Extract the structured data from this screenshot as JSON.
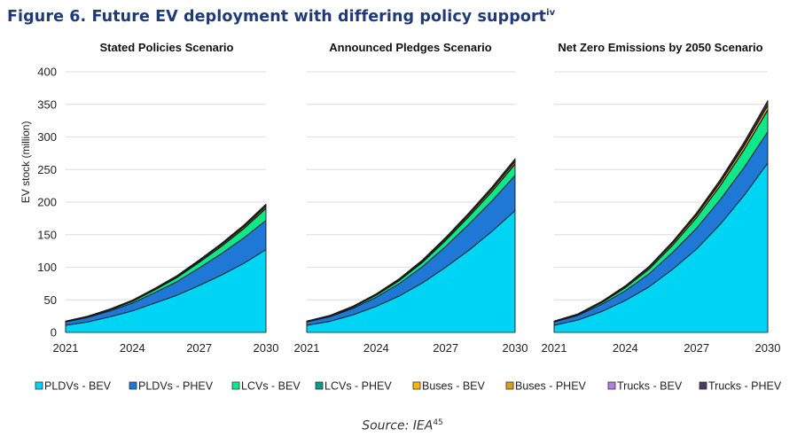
{
  "figure": {
    "title": "Figure 6. Future EV deployment with differing policy support",
    "title_superscript": "iv",
    "source": "Source: IEA",
    "source_superscript": "45"
  },
  "chart_data": {
    "type": "area",
    "stacked": true,
    "ylabel": "EV stock (million)",
    "ylim": [
      0,
      400
    ],
    "yticks": [
      0,
      50,
      100,
      150,
      200,
      250,
      300,
      350,
      400
    ],
    "x": [
      2021,
      2022,
      2023,
      2024,
      2025,
      2026,
      2027,
      2028,
      2029,
      2030
    ],
    "xticks": [
      2021,
      2024,
      2027,
      2030
    ],
    "grid": "horizontal",
    "legend_position": "bottom",
    "legend": [
      {
        "name": "PLDVs - BEV",
        "color": "#00d4f5"
      },
      {
        "name": "PLDVs - PHEV",
        "color": "#1f78d6"
      },
      {
        "name": "LCVs - BEV",
        "color": "#0ee88a"
      },
      {
        "name": "LCVs - PHEV",
        "color": "#0e9a8a"
      },
      {
        "name": "Buses - BEV",
        "color": "#f5b800"
      },
      {
        "name": "Buses - PHEV",
        "color": "#d9a020"
      },
      {
        "name": "Trucks - BEV",
        "color": "#b27ee0"
      },
      {
        "name": "Trucks - PHEV",
        "color": "#4a3a6a"
      }
    ],
    "panels": [
      {
        "title": "Stated Policies Scenario",
        "series": [
          {
            "name": "PLDVs - BEV",
            "values": [
              11,
              16,
              24,
              33,
              45,
              57,
              72,
              88,
              106,
              127
            ]
          },
          {
            "name": "PLDVs - PHEV",
            "values": [
              5,
              7,
              9,
              12,
              16,
              21,
              27,
              33,
              39,
              45
            ]
          },
          {
            "name": "LCVs - BEV",
            "values": [
              0.4,
              0.8,
              1.5,
              2.5,
              4,
              6,
              8.5,
              11,
              14,
              18
            ]
          },
          {
            "name": "LCVs - PHEV",
            "values": [
              0.1,
              0.1,
              0.2,
              0.3,
              0.4,
              0.5,
              0.6,
              0.7,
              0.8,
              1
            ]
          },
          {
            "name": "Buses - BEV",
            "values": [
              0.6,
              0.7,
              0.8,
              1,
              1.2,
              1.4,
              1.6,
              1.9,
              2.2,
              2.5
            ]
          },
          {
            "name": "Buses - PHEV",
            "values": [
              0.1,
              0.1,
              0.1,
              0.1,
              0.1,
              0.2,
              0.2,
              0.2,
              0.2,
              0.3
            ]
          },
          {
            "name": "Trucks - BEV",
            "values": [
              0.1,
              0.1,
              0.1,
              0.2,
              0.3,
              0.4,
              0.5,
              0.7,
              0.9,
              1.2
            ]
          },
          {
            "name": "Trucks - PHEV",
            "values": [
              0.2,
              0.3,
              0.4,
              0.5,
              0.6,
              0.8,
              1,
              1.3,
              1.6,
              2
            ]
          }
        ]
      },
      {
        "title": "Announced Pledges Scenario",
        "series": [
          {
            "name": "PLDVs - BEV",
            "values": [
              11,
              17,
              27,
              40,
              56,
              76,
              100,
              126,
              155,
              187
            ]
          },
          {
            "name": "PLDVs - PHEV",
            "values": [
              5,
              7,
              10,
              14,
              19,
              25,
              32,
              40,
              47,
              54
            ]
          },
          {
            "name": "LCVs - BEV",
            "values": [
              0.4,
              0.9,
              1.7,
              3,
              4.5,
              6.5,
              9,
              11.5,
              14,
              17
            ]
          },
          {
            "name": "LCVs - PHEV",
            "values": [
              0.1,
              0.1,
              0.2,
              0.3,
              0.4,
              0.5,
              0.6,
              0.7,
              0.8,
              1
            ]
          },
          {
            "name": "Buses - BEV",
            "values": [
              0.6,
              0.7,
              0.9,
              1.1,
              1.4,
              1.7,
              2,
              2.4,
              2.8,
              3.2
            ]
          },
          {
            "name": "Buses - PHEV",
            "values": [
              0.1,
              0.1,
              0.1,
              0.1,
              0.2,
              0.2,
              0.2,
              0.3,
              0.3,
              0.4
            ]
          },
          {
            "name": "Trucks - BEV",
            "values": [
              0.1,
              0.1,
              0.2,
              0.3,
              0.4,
              0.6,
              0.8,
              1,
              1.3,
              1.6
            ]
          },
          {
            "name": "Trucks - PHEV",
            "values": [
              0.2,
              0.3,
              0.4,
              0.6,
              0.8,
              1,
              1.3,
              1.6,
              2,
              2.5
            ]
          }
        ]
      },
      {
        "title": "Net Zero Emissions by 2050 Scenario",
        "series": [
          {
            "name": "PLDVs - BEV",
            "values": [
              11,
              19,
              32,
              49,
              70,
              97,
              128,
              166,
              210,
              260
            ]
          },
          {
            "name": "PLDVs - PHEV",
            "values": [
              5,
              7,
              11,
              15,
              20,
              26,
              32,
              38,
              43,
              48
            ]
          },
          {
            "name": "LCVs - BEV",
            "values": [
              0.4,
              1,
              2.5,
              4.5,
              7,
              11,
              16,
              21,
              27,
              33
            ]
          },
          {
            "name": "LCVs - PHEV",
            "values": [
              0.1,
              0.1,
              0.2,
              0.3,
              0.4,
              0.5,
              0.6,
              0.7,
              0.8,
              1
            ]
          },
          {
            "name": "Buses - BEV",
            "values": [
              0.6,
              0.8,
              1.1,
              1.5,
              2,
              2.6,
              3.3,
              4.1,
              5,
              6
            ]
          },
          {
            "name": "Buses - PHEV",
            "values": [
              0.1,
              0.1,
              0.1,
              0.2,
              0.2,
              0.3,
              0.3,
              0.4,
              0.4,
              0.5
            ]
          },
          {
            "name": "Trucks - BEV",
            "values": [
              0.1,
              0.2,
              0.3,
              0.5,
              0.8,
              1.1,
              1.5,
              2,
              2.6,
              3.3
            ]
          },
          {
            "name": "Trucks - PHEV",
            "values": [
              0.2,
              0.3,
              0.5,
              0.7,
              1,
              1.4,
              1.9,
              2.5,
              3.2,
              4
            ]
          }
        ]
      }
    ]
  }
}
